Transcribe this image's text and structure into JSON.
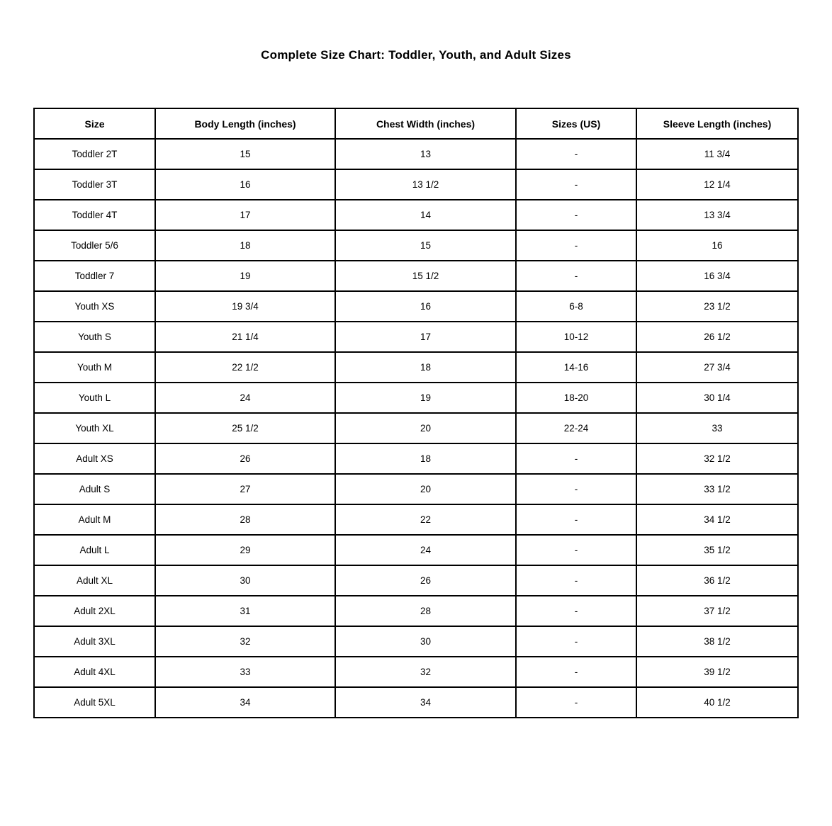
{
  "page": {
    "title": "Complete Size Chart: Toddler, Youth, and Adult Sizes"
  },
  "table": {
    "headers": [
      "Size",
      "Body Length (inches)",
      "Chest Width (inches)",
      "Sizes (US)",
      "Sleeve Length (inches)"
    ],
    "rows": [
      [
        "Toddler 2T",
        "15",
        "13",
        "-",
        "11 3/4"
      ],
      [
        "Toddler 3T",
        "16",
        "13 1/2",
        "-",
        "12 1/4"
      ],
      [
        "Toddler 4T",
        "17",
        "14",
        "-",
        "13 3/4"
      ],
      [
        "Toddler 5/6",
        "18",
        "15",
        "-",
        "16"
      ],
      [
        "Toddler 7",
        "19",
        "15 1/2",
        "-",
        "16 3/4"
      ],
      [
        "Youth XS",
        "19 3/4",
        "16",
        "6-8",
        "23 1/2"
      ],
      [
        "Youth S",
        "21 1/4",
        "17",
        "10-12",
        "26 1/2"
      ],
      [
        "Youth M",
        "22 1/2",
        "18",
        "14-16",
        "27 3/4"
      ],
      [
        "Youth L",
        "24",
        "19",
        "18-20",
        "30 1/4"
      ],
      [
        "Youth XL",
        "25 1/2",
        "20",
        "22-24",
        "33"
      ],
      [
        "Adult XS",
        "26",
        "18",
        "-",
        "32 1/2"
      ],
      [
        "Adult S",
        "27",
        "20",
        "-",
        "33 1/2"
      ],
      [
        "Adult M",
        "28",
        "22",
        "-",
        "34 1/2"
      ],
      [
        "Adult L",
        "29",
        "24",
        "-",
        "35 1/2"
      ],
      [
        "Adult XL",
        "30",
        "26",
        "-",
        "36 1/2"
      ],
      [
        "Adult 2XL",
        "31",
        "28",
        "-",
        "37 1/2"
      ],
      [
        "Adult 3XL",
        "32",
        "30",
        "-",
        "38 1/2"
      ],
      [
        "Adult 4XL",
        "33",
        "32",
        "-",
        "39 1/2"
      ],
      [
        "Adult 5XL",
        "34",
        "34",
        "-",
        "40 1/2"
      ]
    ]
  }
}
